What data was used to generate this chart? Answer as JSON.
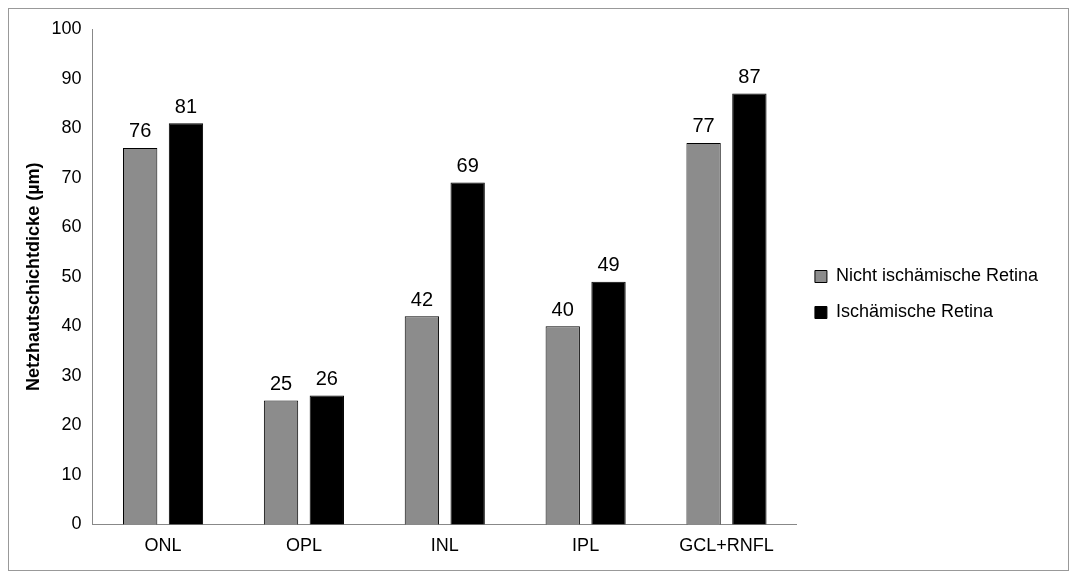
{
  "chart_data": {
    "type": "bar",
    "ylabel": "Netzhautschichtdicke (µm)",
    "categories": [
      "ONL",
      "OPL",
      "INL",
      "IPL",
      "GCL+RNFL"
    ],
    "series": [
      {
        "name": "Nicht ischämische Retina",
        "color": "#8c8c8c",
        "values": [
          76,
          25,
          42,
          40,
          77
        ]
      },
      {
        "name": "Ischämische Retina",
        "color": "#000000",
        "values": [
          81,
          26,
          69,
          49,
          87
        ]
      }
    ],
    "ylim": [
      0,
      100
    ],
    "yticks": [
      0,
      10,
      20,
      30,
      40,
      50,
      60,
      70,
      80,
      90,
      100
    ],
    "grid": false,
    "legend": "right",
    "data_labels": true
  }
}
